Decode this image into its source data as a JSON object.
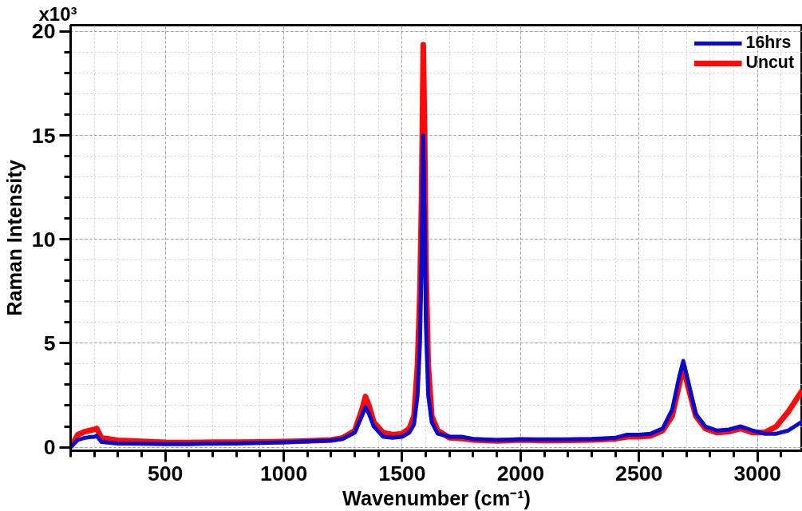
{
  "chart_data": {
    "type": "line",
    "xlabel": "Wavenumber (cm⁻¹)",
    "ylabel": "Raman Intensity",
    "xlim": [
      100,
      3190
    ],
    "ylim": [
      -0.17,
      20.3
    ],
    "xticks": [
      500,
      1000,
      1500,
      2000,
      2500,
      3000
    ],
    "yticks": [
      0,
      5,
      10,
      15,
      20
    ],
    "annotations": [
      "x10³"
    ],
    "grid": true,
    "legend": "top right",
    "line_style": "solid",
    "marker": "none",
    "x": [
      100,
      130,
      160,
      180,
      200,
      210,
      230,
      300,
      400,
      500,
      600,
      700,
      800,
      900,
      1000,
      1100,
      1200,
      1250,
      1300,
      1330,
      1345,
      1360,
      1380,
      1420,
      1460,
      1500,
      1530,
      1550,
      1565,
      1575,
      1582,
      1589,
      1595,
      1600,
      1610,
      1625,
      1650,
      1700,
      1750,
      1800,
      1900,
      2000,
      2100,
      2200,
      2300,
      2400,
      2450,
      2500,
      2550,
      2600,
      2640,
      2670,
      2687,
      2705,
      2740,
      2780,
      2830,
      2880,
      2930,
      2980,
      3030,
      3080,
      3130,
      3190
    ],
    "series": [
      {
        "name": "16hrs",
        "color": "#0a0acd",
        "values": [
          0,
          0.35,
          0.45,
          0.48,
          0.5,
          0.55,
          0.25,
          0.18,
          0.17,
          0.15,
          0.15,
          0.17,
          0.18,
          0.2,
          0.23,
          0.28,
          0.32,
          0.4,
          0.7,
          1.5,
          1.93,
          1.6,
          1.0,
          0.5,
          0.45,
          0.5,
          0.7,
          1.1,
          2.5,
          5.0,
          9.0,
          15.0,
          11.0,
          6.0,
          2.5,
          1.2,
          0.65,
          0.5,
          0.5,
          0.4,
          0.35,
          0.38,
          0.38,
          0.38,
          0.4,
          0.45,
          0.6,
          0.6,
          0.65,
          0.9,
          1.8,
          3.4,
          4.15,
          3.3,
          1.6,
          1.0,
          0.8,
          0.85,
          1.0,
          0.8,
          0.65,
          0.65,
          0.8,
          1.24
        ]
      },
      {
        "name": "Uncut",
        "color": "#ff0a0a",
        "values": [
          0,
          0.6,
          0.75,
          0.8,
          0.85,
          0.9,
          0.45,
          0.33,
          0.28,
          0.23,
          0.22,
          0.24,
          0.24,
          0.25,
          0.27,
          0.3,
          0.35,
          0.45,
          0.8,
          1.8,
          2.44,
          2.0,
          1.2,
          0.7,
          0.6,
          0.65,
          0.9,
          1.5,
          4.0,
          7.5,
          12.0,
          19.36,
          15.0,
          9.0,
          4.0,
          1.5,
          0.8,
          0.45,
          0.42,
          0.35,
          0.3,
          0.35,
          0.32,
          0.33,
          0.35,
          0.4,
          0.5,
          0.5,
          0.55,
          0.8,
          1.5,
          3.0,
          3.9,
          3.0,
          1.5,
          0.9,
          0.7,
          0.75,
          0.9,
          0.7,
          0.7,
          1.0,
          1.7,
          2.74
        ]
      }
    ]
  }
}
